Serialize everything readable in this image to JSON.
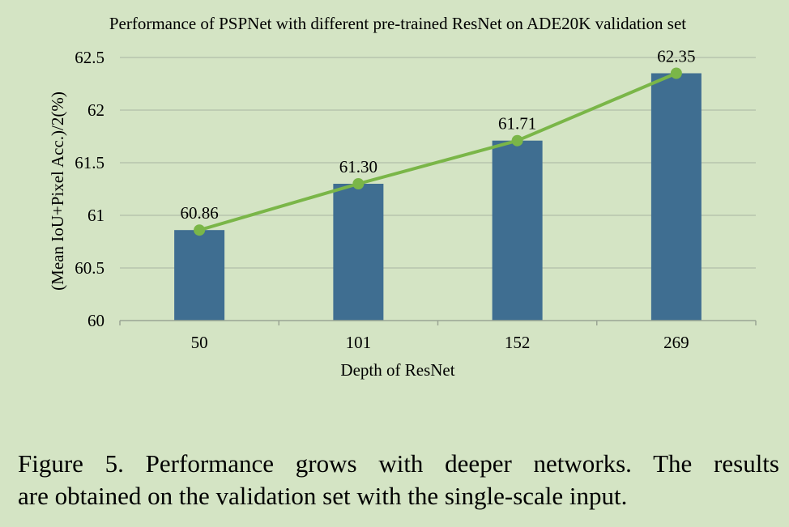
{
  "chart_data": {
    "type": "bar",
    "title": "Performance of PSPNet with different pre-trained ResNet on ADE20K validation set",
    "xlabel": "Depth of ResNet",
    "ylabel": "(Mean IoU+Pixel Acc.)/2(%)",
    "categories": [
      "50",
      "101",
      "152",
      "269"
    ],
    "values": [
      60.86,
      61.3,
      61.71,
      62.35
    ],
    "data_labels": [
      "60.86",
      "61.30",
      "61.71",
      "62.35"
    ],
    "ylim": [
      60,
      62.5
    ],
    "yticks": [
      "60",
      "60.5",
      "61",
      "61.5",
      "62",
      "62.5"
    ],
    "overlay": "line",
    "grid": true,
    "legend": "none",
    "colors": {
      "bar": "#3f6e91",
      "line": "#7ab648",
      "grid": "#b7c3ad",
      "axis": "#9aa593",
      "text": "#000000"
    }
  },
  "caption": {
    "line1": "Figure 5. Performance grows with deeper networks.  The results",
    "line2": "are obtained on the validation set with the single-scale input."
  }
}
